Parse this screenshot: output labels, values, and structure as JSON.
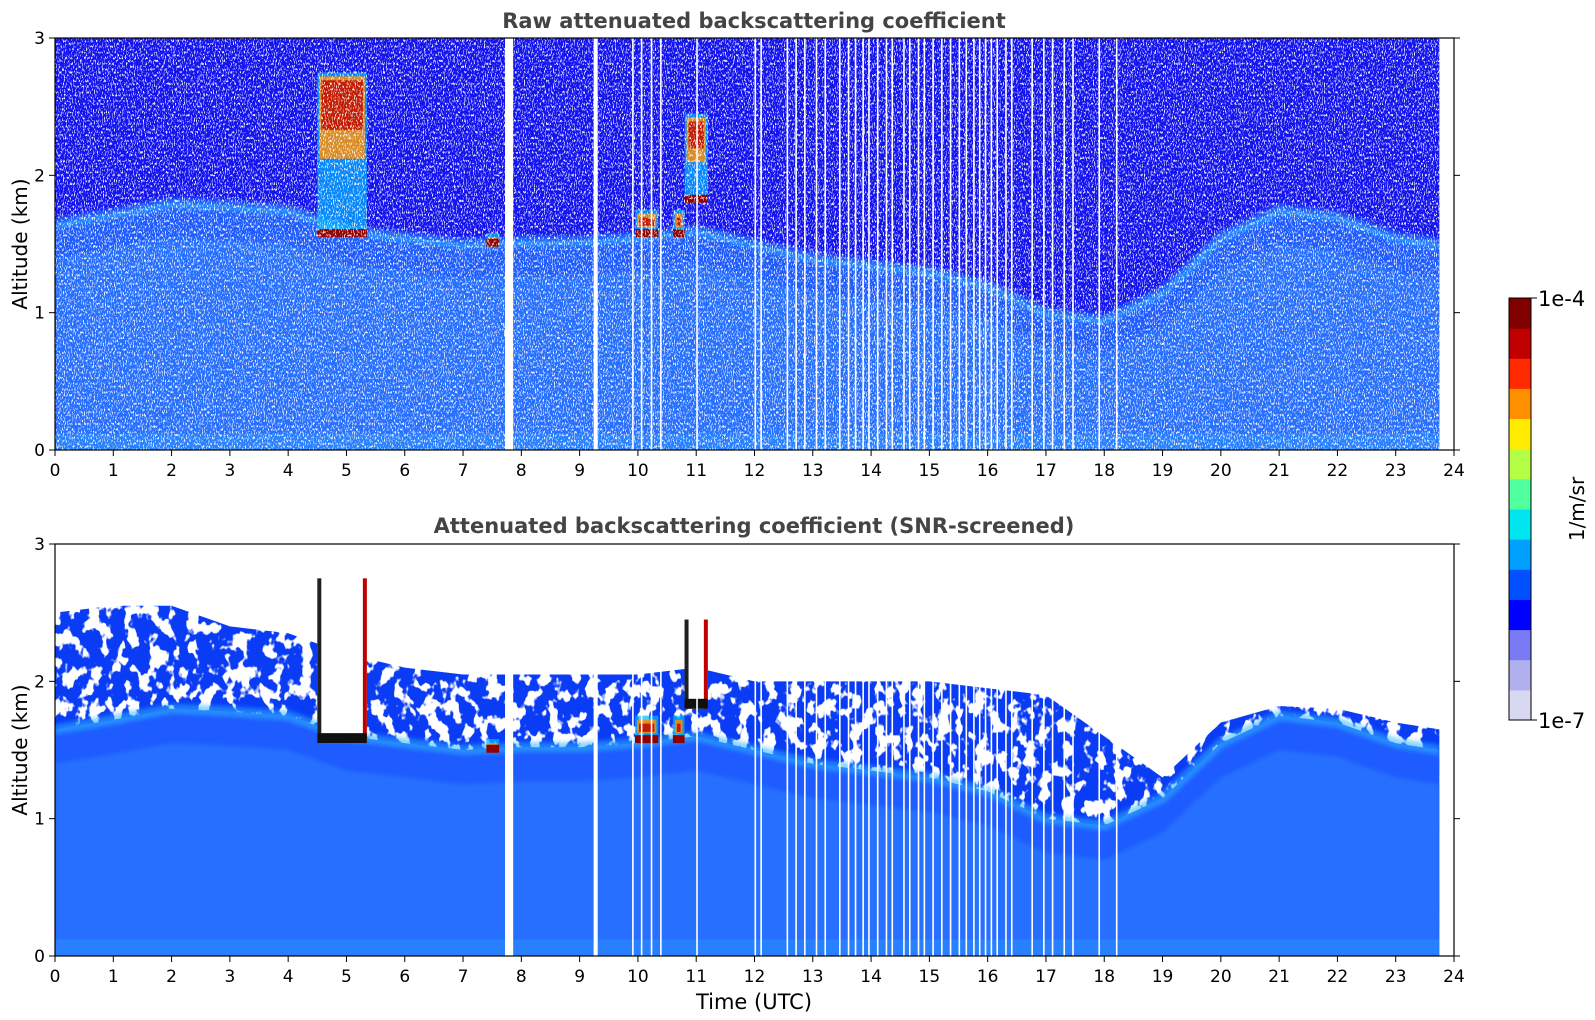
{
  "chart_data": [
    {
      "type": "heatmap",
      "title": "Raw attenuated backscattering coefficient",
      "xlabel": "",
      "ylabel": "Altitude (km)",
      "xlim": [
        0,
        24
      ],
      "ylim": [
        0,
        3
      ],
      "x_ticks": [
        "0",
        "1",
        "2",
        "3",
        "4",
        "5",
        "6",
        "7",
        "8",
        "9",
        "10",
        "11",
        "12",
        "13",
        "14",
        "15",
        "16",
        "17",
        "18",
        "19",
        "20",
        "21",
        "22",
        "23",
        "24"
      ],
      "y_ticks": [
        "0",
        "1",
        "2",
        "3"
      ],
      "data_end_hour": 23.75,
      "data_gaps_hours": [
        [
          7.72,
          7.86
        ],
        [
          9.24,
          9.31
        ]
      ],
      "missing_profile_hours": [
        9.9,
        10.05,
        10.22,
        10.38,
        11.0,
        12.0,
        12.1,
        12.55,
        12.7,
        12.85,
        13.05,
        13.2,
        13.45,
        13.6,
        13.72,
        13.85,
        13.95,
        14.1,
        14.25,
        14.35,
        14.55,
        14.65,
        14.8,
        14.9,
        15.05,
        15.2,
        15.35,
        15.5,
        15.62,
        15.75,
        15.85,
        15.95,
        16.05,
        16.15,
        16.3,
        16.4,
        16.75,
        16.95,
        17.1,
        17.3,
        17.45,
        17.9,
        18.2
      ],
      "features": {
        "boundary_layer_top_km": [
          [
            0,
            1.65
          ],
          [
            1,
            1.72
          ],
          [
            2,
            1.8
          ],
          [
            3,
            1.78
          ],
          [
            4,
            1.75
          ],
          [
            5,
            1.6
          ],
          [
            6,
            1.55
          ],
          [
            7,
            1.5
          ],
          [
            8,
            1.52
          ],
          [
            9,
            1.52
          ],
          [
            10,
            1.55
          ],
          [
            11,
            1.6
          ],
          [
            12,
            1.5
          ],
          [
            13,
            1.4
          ],
          [
            14,
            1.35
          ],
          [
            15,
            1.3
          ],
          [
            16,
            1.2
          ],
          [
            17,
            1.0
          ],
          [
            18,
            0.95
          ],
          [
            19,
            1.15
          ],
          [
            20,
            1.55
          ],
          [
            21,
            1.75
          ],
          [
            22,
            1.7
          ],
          [
            23,
            1.55
          ],
          [
            23.75,
            1.5
          ]
        ],
        "clouds": [
          {
            "t0": 4.5,
            "t1": 5.35,
            "z0": 1.55,
            "z1": 2.75
          },
          {
            "t0": 7.4,
            "t1": 7.62,
            "z0": 1.48,
            "z1": 1.58
          },
          {
            "t0": 9.95,
            "t1": 10.35,
            "z0": 1.55,
            "z1": 1.75
          },
          {
            "t0": 10.6,
            "t1": 10.8,
            "z0": 1.55,
            "z1": 1.75
          },
          {
            "t0": 10.8,
            "t1": 11.2,
            "z0": 1.8,
            "z1": 2.45
          }
        ]
      }
    },
    {
      "type": "heatmap",
      "title": "Attenuated backscattering coefficient (SNR-screened)",
      "xlabel": "Time (UTC)",
      "ylabel": "Altitude (km)",
      "xlim": [
        0,
        24
      ],
      "ylim": [
        0,
        3
      ],
      "x_ticks": [
        "0",
        "1",
        "2",
        "3",
        "4",
        "5",
        "6",
        "7",
        "8",
        "9",
        "10",
        "11",
        "12",
        "13",
        "14",
        "15",
        "16",
        "17",
        "18",
        "19",
        "20",
        "21",
        "22",
        "23",
        "24"
      ],
      "y_ticks": [
        "0",
        "1",
        "2",
        "3"
      ],
      "screened_top_km": [
        [
          0,
          2.5
        ],
        [
          1,
          2.55
        ],
        [
          2,
          2.55
        ],
        [
          3,
          2.4
        ],
        [
          4,
          2.35
        ],
        [
          5,
          2.2
        ],
        [
          6,
          2.1
        ],
        [
          7,
          2.05
        ],
        [
          8,
          2.05
        ],
        [
          9,
          2.05
        ],
        [
          10,
          2.05
        ],
        [
          11,
          2.1
        ],
        [
          12,
          2.0
        ],
        [
          13,
          2.0
        ],
        [
          14,
          2.0
        ],
        [
          15,
          2.0
        ],
        [
          16,
          1.95
        ],
        [
          17,
          1.9
        ],
        [
          18,
          1.6
        ],
        [
          19,
          1.3
        ],
        [
          20,
          1.7
        ],
        [
          21,
          1.82
        ],
        [
          22,
          1.8
        ],
        [
          23,
          1.7
        ],
        [
          23.75,
          1.65
        ]
      ]
    }
  ],
  "colorbar": {
    "label": "1/m/sr",
    "max_label": "1e-4",
    "min_label": "1e-7",
    "scale": "log",
    "min": 1e-07,
    "max": 0.0001,
    "colormap": "jet",
    "colors": [
      "#d8d8f2",
      "#b0b0ee",
      "#7a7af5",
      "#0000ff",
      "#0050ff",
      "#00a0ff",
      "#00e5ee",
      "#50ff9e",
      "#b4ff46",
      "#ffec00",
      "#ff9000",
      "#ff2a00",
      "#c00000",
      "#800000"
    ]
  }
}
